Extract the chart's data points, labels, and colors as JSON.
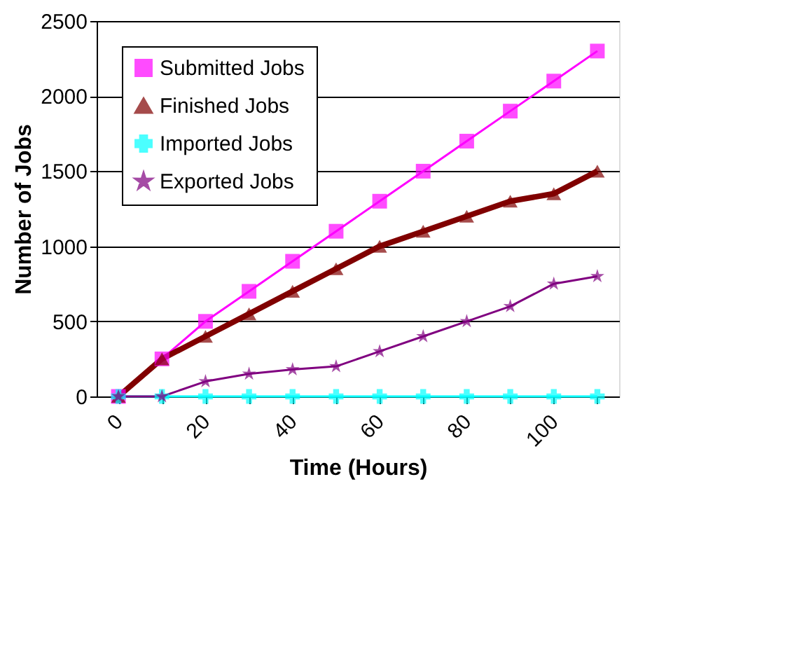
{
  "chart_data": {
    "type": "line",
    "xlabel": "Time (Hours)",
    "ylabel": "Number of Jobs",
    "categories": [
      "0",
      null,
      "20",
      null,
      "40",
      null,
      "60",
      null,
      "80",
      null,
      "100",
      null
    ],
    "series": [
      {
        "name": "Submitted Jobs",
        "color": "#ff00ff",
        "marker": "square",
        "values": [
          0,
          250,
          500,
          700,
          900,
          1100,
          1300,
          1500,
          1700,
          1900,
          2100,
          2300
        ]
      },
      {
        "name": "Finished Jobs",
        "color": "#800000",
        "marker": "triangle",
        "values": [
          0,
          250,
          400,
          550,
          700,
          850,
          1000,
          1100,
          1200,
          1300,
          1350,
          1500
        ]
      },
      {
        "name": "Imported Jobs",
        "color": "#00ffff",
        "marker": "cross",
        "values": [
          0,
          0,
          0,
          0,
          0,
          0,
          0,
          0,
          0,
          0,
          0,
          0
        ]
      },
      {
        "name": "Exported Jobs",
        "color": "#800080",
        "marker": "star",
        "values": [
          0,
          0,
          100,
          150,
          180,
          200,
          300,
          400,
          500,
          600,
          750,
          800
        ]
      }
    ],
    "ylim": [
      0,
      2500
    ],
    "yticks": [
      0,
      500,
      1000,
      1500,
      2000,
      2500
    ],
    "grid": "y",
    "legend": "top left"
  }
}
